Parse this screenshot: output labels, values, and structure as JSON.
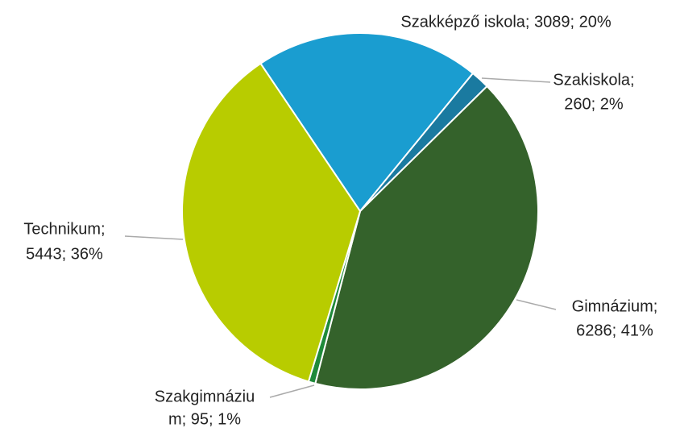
{
  "chart_data": {
    "type": "pie",
    "categories": [
      "Szakképző iskola",
      "Szakiskola",
      "Gimnázium",
      "Szakgimnázium",
      "Technikum"
    ],
    "values": [
      3089,
      260,
      6286,
      95,
      5443
    ],
    "percents": [
      20,
      2,
      41,
      1,
      36
    ],
    "value_labels": [
      [
        "Szakképző iskola; 3089; 20%"
      ],
      [
        "Szakiskola;",
        "260; 2%"
      ],
      [
        "Gimnázium;",
        "6286; 41%"
      ],
      [
        "Szakgimnáziu",
        "m; 95; 1%"
      ],
      [
        "Technikum;",
        "5443; 36%"
      ]
    ],
    "colors": [
      "#1a9dd0",
      "#1a7aa0",
      "#34622b",
      "#1f8a3a",
      "#b8cc00"
    ]
  }
}
